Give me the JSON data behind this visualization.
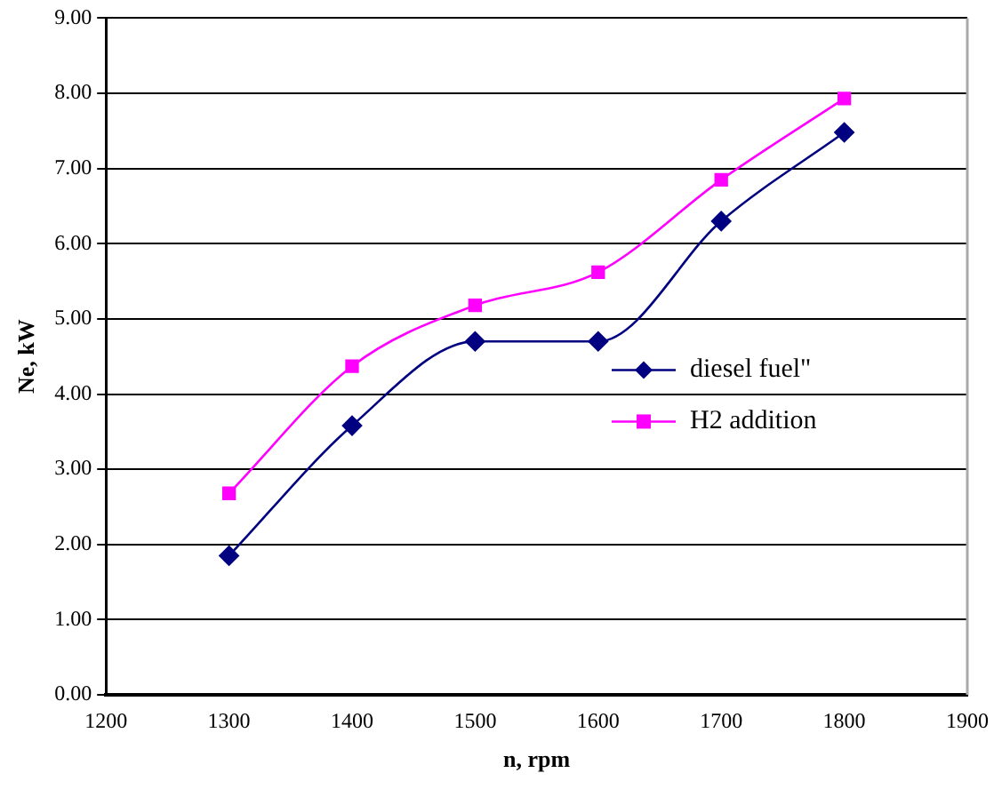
{
  "chart_data": {
    "type": "line",
    "xlabel": "n, rpm",
    "ylabel": "Ne, kW",
    "x": [
      1300,
      1400,
      1500,
      1600,
      1700,
      1800
    ],
    "series": [
      {
        "name": "diesel fuel\"",
        "color": "#000080",
        "marker": "diamond",
        "values": [
          1.85,
          3.58,
          4.7,
          4.7,
          6.3,
          7.48
        ]
      },
      {
        "name": "H2 addition",
        "color": "#ff00ff",
        "marker": "square",
        "values": [
          2.68,
          4.37,
          5.18,
          5.62,
          6.85,
          7.93
        ]
      }
    ],
    "xlim": [
      1200,
      1900
    ],
    "xticks": [
      1200,
      1300,
      1400,
      1500,
      1600,
      1700,
      1800,
      1900
    ],
    "ylim": [
      0,
      9
    ],
    "yticks": [
      {
        "value": 0,
        "label": "0.00"
      },
      {
        "value": 1,
        "label": "1.00"
      },
      {
        "value": 2,
        "label": "2.00"
      },
      {
        "value": 3,
        "label": "3.00"
      },
      {
        "value": 4,
        "label": "4.00"
      },
      {
        "value": 5,
        "label": "5.00"
      },
      {
        "value": 6,
        "label": "6.00"
      },
      {
        "value": 7,
        "label": "7.00"
      },
      {
        "value": 8,
        "label": "8.00"
      },
      {
        "value": 9,
        "label": "9.00"
      }
    ],
    "grid": "y",
    "legend": "right",
    "line_style": "solid"
  }
}
